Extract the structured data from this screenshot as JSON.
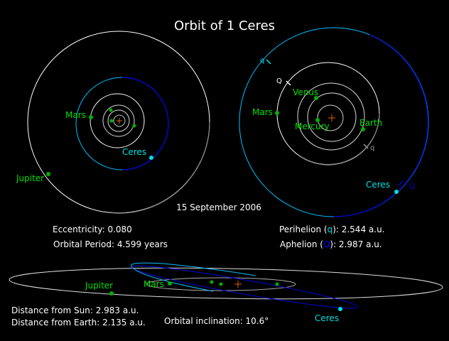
{
  "title": "Orbit of 1 Ceres",
  "date": "15 September 2006",
  "colors": {
    "background": "#000000",
    "planet": "#00b000",
    "planet_label": "#00e000",
    "ceres": "#00e0e0",
    "ceres_orbit_near": "#00bfff",
    "ceres_orbit_far": "#0000dd",
    "sun": "#e06000"
  },
  "labels": {
    "jupiter": "Jupiter",
    "mars": "Mars",
    "venus": "Venus",
    "mercury": "Mercury",
    "earth": "Earth",
    "ceres": "Ceres",
    "perihelion_marker": "q",
    "aphelion_marker": "Q"
  },
  "stats": {
    "eccentricity": "Eccentricity: 0.080",
    "period": "Orbital Period: 4.599 years",
    "perihelion_pre": "Perihelion (",
    "perihelion_sym": "q",
    "perihelion_post": "): 2.544 a.u.",
    "aphelion_pre": "Aphelion (",
    "aphelion_sym": "Q",
    "aphelion_post": "):  2.987 a.u.",
    "distance_sun": "Distance from Sun: 2.983 a.u.",
    "distance_earth": "Distance from Earth: 2.135 a.u.",
    "inclination": "Orbital inclination: 10.6°"
  }
}
